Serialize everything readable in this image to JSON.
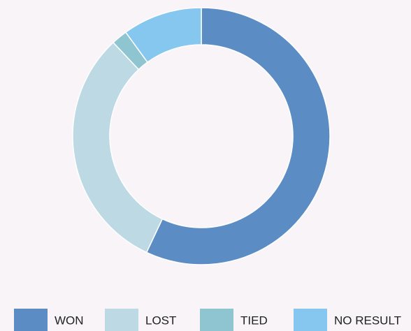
{
  "chart_data": {
    "type": "donut",
    "categories": [
      "WON",
      "LOST",
      "TIED",
      "NO RESULT"
    ],
    "values": [
      57,
      31,
      2,
      10
    ],
    "colors": [
      "#5b8dc4",
      "#bcd9e4",
      "#8ec5d0",
      "#85c7ee"
    ],
    "legend": "bottom"
  }
}
